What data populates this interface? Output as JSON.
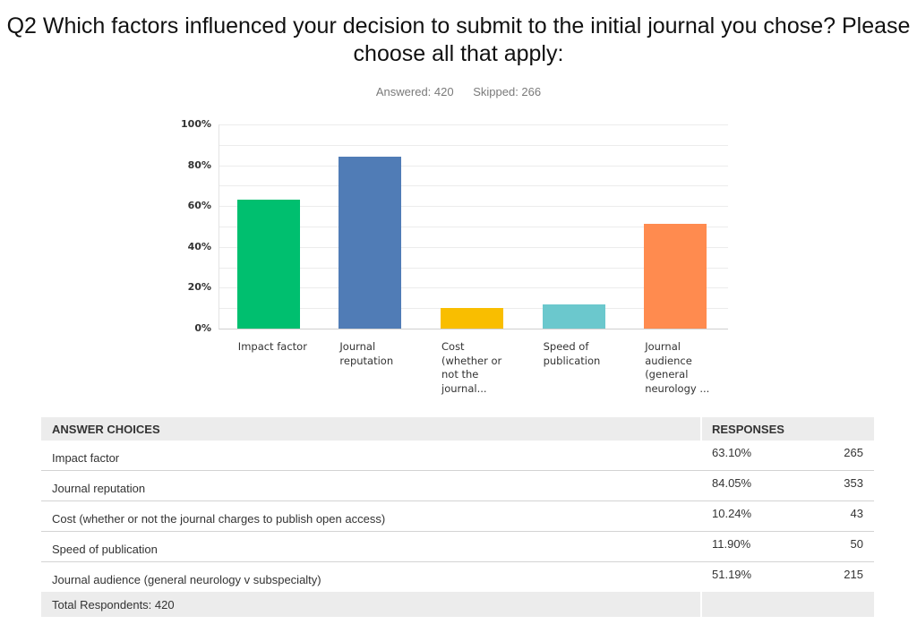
{
  "header": {
    "question": "Q2 Which factors influenced your decision to submit to the initial journal you chose? Please choose all that apply:",
    "answered": "Answered: 420",
    "skipped": "Skipped: 266"
  },
  "chart_data": {
    "type": "bar",
    "title": "Q2 Which factors influenced your decision to submit to the initial journal you chose? Please choose all that apply:",
    "subtitle": "Answered: 420 Skipped: 266",
    "categories": [
      "Impact factor",
      "Journal reputation",
      "Cost (whether or not the journal...",
      "Speed of publication",
      "Journal audience (general neurology ..."
    ],
    "category_labels_wrapped": [
      "Impact factor",
      "Journal\nreputation",
      "Cost\n(whether or\nnot the\njournal...",
      "Speed of\npublication",
      "Journal\naudience\n(general\nneurology ..."
    ],
    "values": [
      63.1,
      84.05,
      10.24,
      11.9,
      51.19
    ],
    "colors": [
      "#00bf6f",
      "#507cb6",
      "#f9be00",
      "#6bc8cd",
      "#ff8b4f"
    ],
    "xlabel": "",
    "ylabel": "",
    "ylim": [
      0,
      100
    ],
    "yticks": [
      "0%",
      "20%",
      "40%",
      "60%",
      "80%",
      "100%"
    ],
    "grid": true,
    "gridline_step": 10,
    "legend": "none"
  },
  "table": {
    "headers": {
      "choice": "ANSWER CHOICES",
      "responses": "RESPONSES"
    },
    "rows": [
      {
        "choice": "Impact factor",
        "percent": "63.10%",
        "count": "265"
      },
      {
        "choice": "Journal reputation",
        "percent": "84.05%",
        "count": "353"
      },
      {
        "choice": "Cost (whether or not the journal charges to publish open access)",
        "percent": "10.24%",
        "count": "43"
      },
      {
        "choice": "Speed of publication",
        "percent": "11.90%",
        "count": "50"
      },
      {
        "choice": "Journal audience (general neurology v subspecialty)",
        "percent": "51.19%",
        "count": "215"
      }
    ],
    "footer": "Total Respondents: 420"
  }
}
